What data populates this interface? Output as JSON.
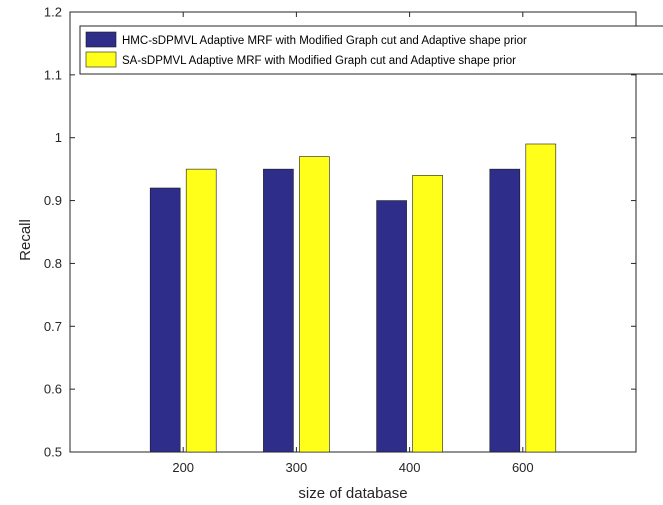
{
  "chart_data": {
    "type": "bar",
    "categories": [
      "200",
      "300",
      "400",
      "600"
    ],
    "series": [
      {
        "name": "HMC-sDPMVL Adaptive MRF with Modified Graph cut and Adaptive shape prior",
        "values": [
          0.92,
          0.95,
          0.9,
          0.95
        ],
        "color": "#2e2e8a"
      },
      {
        "name": "SA-sDPMVL Adaptive MRF with Modified Graph cut and Adaptive shape prior",
        "values": [
          0.95,
          0.97,
          0.94,
          0.99
        ],
        "color": "#ffff1a"
      }
    ],
    "xlabel": "size of database",
    "ylabel": "Recall",
    "ylim": [
      0.5,
      1.2
    ],
    "yticks": [
      "0.5",
      "0.6",
      "0.7",
      "0.8",
      "0.9",
      "1",
      "1.1",
      "1.2"
    ],
    "grid": false,
    "legend_position": "top"
  }
}
